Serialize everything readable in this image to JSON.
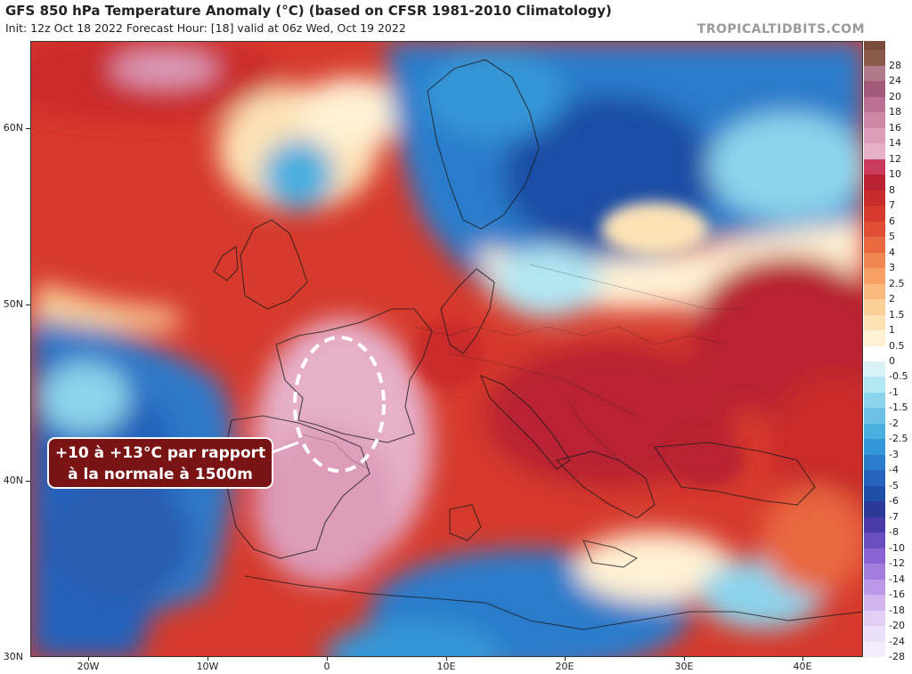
{
  "header": {
    "title": "GFS 850 hPa Temperature Anomaly (°C) (based on CFSR 1981-2010 Climatology)",
    "subtitle": "Init: 12z Oct 18 2022   Forecast Hour: [18]   valid at 06z Wed, Oct 19 2022",
    "brand": "TROPICALTIDBITS.COM"
  },
  "map": {
    "lat_range": [
      30,
      65
    ],
    "lon_range": [
      -25,
      45
    ],
    "lat_labels": [
      "60N",
      "50N",
      "40N",
      "30N"
    ],
    "lon_labels": [
      "20W",
      "10W",
      "0",
      "10E",
      "20E",
      "30E",
      "40E"
    ],
    "anomaly_regions": [
      {
        "region": "Iberia / France",
        "anomaly_c": 12
      },
      {
        "region": "Scandinavia / Baltic",
        "anomaly_c": -5
      },
      {
        "region": "Eastern Atlantic",
        "anomaly_c": -4
      },
      {
        "region": "Central Mediterranean",
        "anomaly_c": -3
      },
      {
        "region": "Balkans / Turkey",
        "anomaly_c": 6
      },
      {
        "region": "Southern Russia",
        "anomaly_c": 7
      }
    ]
  },
  "annotation": {
    "line1": "+10 à +13°C par rapport",
    "line2": "à la normale à 1500m"
  },
  "legend": {
    "labels": [
      "28",
      "24",
      "20",
      "18",
      "16",
      "14",
      "12",
      "10",
      "8",
      "7",
      "6",
      "5",
      "4",
      "3",
      "2.5",
      "2",
      "1.5",
      "1",
      "0.5",
      "0",
      "-0.5",
      "-1",
      "-1.5",
      "-2",
      "-2.5",
      "-3",
      "-4",
      "-5",
      "-6",
      "-7",
      "-8",
      "-10",
      "-12",
      "-14",
      "-16",
      "-18",
      "-20",
      "-24",
      "-28"
    ],
    "colors": [
      "#8a5a4a",
      "#b07a8a",
      "#a35a7a",
      "#bb6f92",
      "#cd86a6",
      "#dc9cba",
      "#e6b0c9",
      "#ca3a5a",
      "#b82232",
      "#c92c2c",
      "#d63a2c",
      "#df4f34",
      "#e86840",
      "#f08652",
      "#f6a066",
      "#f9b87e",
      "#fbcf98",
      "#fde2b6",
      "#fff1d4",
      "#ffffff",
      "#d8f2f8",
      "#b2e6f2",
      "#8cd4ec",
      "#6cc2e6",
      "#4aaedf",
      "#3496d6",
      "#2a7ccb",
      "#2462bb",
      "#1f4ea6",
      "#2a3a96",
      "#4a3aa8",
      "#6a4ec0",
      "#8a64d2",
      "#a47ede",
      "#bc98e8",
      "#d2b4ee",
      "#e2cef4",
      "#ece0f8",
      "#f4ecfb"
    ]
  }
}
